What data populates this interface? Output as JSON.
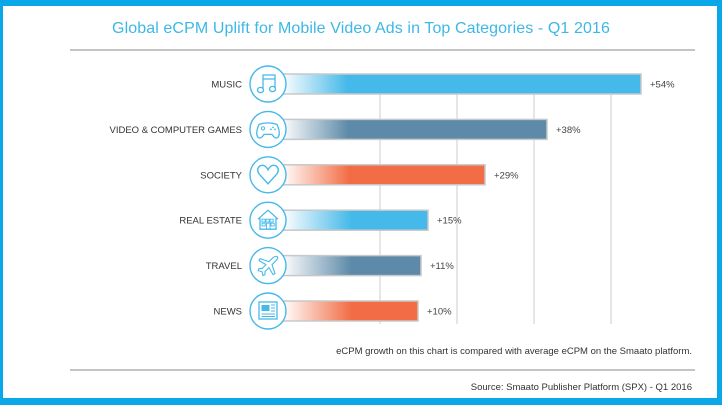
{
  "chart_data": {
    "type": "bar",
    "orientation": "horizontal",
    "title": "Global eCPM Uplift for Mobile Video Ads in Top Categories - Q1 2016",
    "categories": [
      "MUSIC",
      "VIDEO & COMPUTER GAMES",
      "SOCIETY",
      "REAL ESTATE",
      "TRAVEL",
      "NEWS"
    ],
    "values": [
      54,
      38,
      29,
      15,
      11,
      10
    ],
    "value_labels": [
      "+54%",
      "+38%",
      "+29%",
      "+15%",
      "+11%",
      "+10%"
    ],
    "unit": "%",
    "icons": [
      "music-note-icon",
      "gamepad-icon",
      "heart-icon",
      "house-icon",
      "airplane-icon",
      "newspaper-icon"
    ],
    "bar_colors": [
      "#45b9e9",
      "#5d8aa8",
      "#f26d45",
      "#45b9e9",
      "#5d8aa8",
      "#f26d45"
    ],
    "xlabel": "",
    "ylabel": "",
    "grid": true,
    "legend": "none"
  },
  "footnote": "eCPM growth on this chart is compared with average eCPM on the Smaato platform.",
  "source": "Source: Smaato Publisher Platform (SPX) - Q1 2016",
  "colors": {
    "frame": "#0aa8e8",
    "title": "#3db8e6",
    "icon": "#45b9e9",
    "grid": "#e6e6e6",
    "separator": "#c4c4c4"
  }
}
